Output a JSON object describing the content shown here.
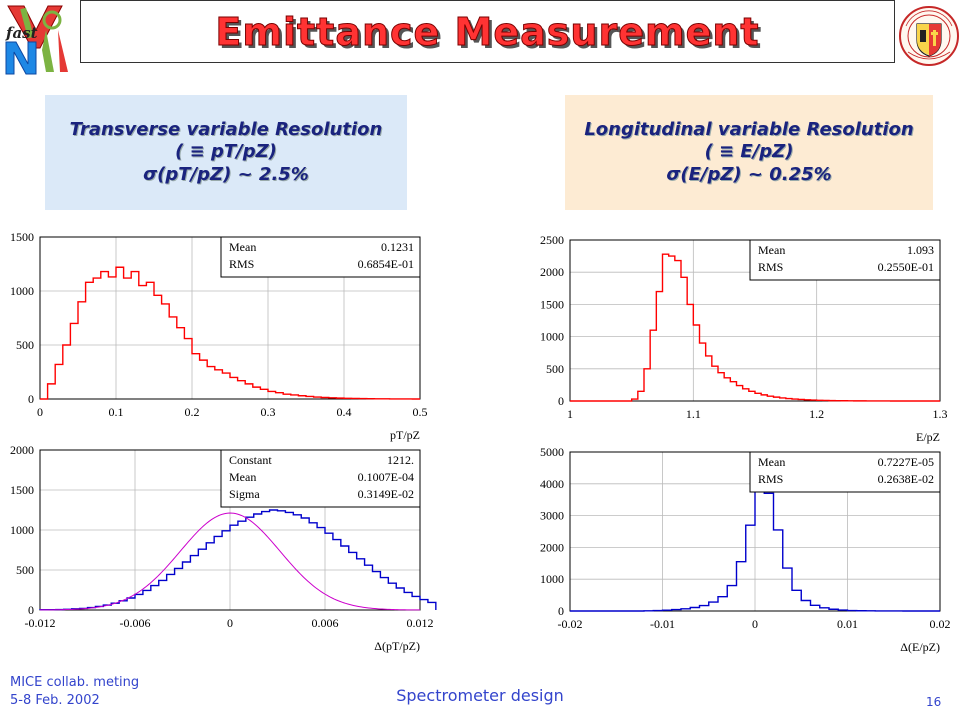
{
  "slide": {
    "title": "Emittance Measurement",
    "trans_box": {
      "heading": "Transverse variable Resolution",
      "line1": "( ≡ pT/pZ)",
      "line2": "σ(pT/pZ) ~ 2.5%"
    },
    "long_box": {
      "heading": "Longitudinal variable Resolution",
      "line1": "( ≡ E/pZ)",
      "line2": "σ(E/pZ) ~ 0.25%"
    },
    "footer": {
      "line1": "MICE collab. meting",
      "line2": "5-8 Feb. 2002",
      "center": "Spectrometer design",
      "page": "16"
    },
    "colors": {
      "title": "#ff3333",
      "box_text": "#1a237e",
      "footer": "#3344cc",
      "red_hist": "#ff0000",
      "blue_hist": "#0000cc",
      "fit": "#cc00cc"
    }
  },
  "chart_data": [
    {
      "type": "histogram",
      "xlabel": "pT/pZ",
      "xlim": [
        0,
        0.5
      ],
      "ylim": [
        0,
        1500
      ],
      "xticks": [
        "0",
        "0.1",
        "0.2",
        "0.3",
        "0.4",
        "0.5"
      ],
      "yticks": [
        "0",
        "500",
        "1000",
        "1500"
      ],
      "stats": [
        [
          "Mean",
          "0.1231"
        ],
        [
          "RMS",
          "0.6854E-01"
        ]
      ],
      "bin_low": 0,
      "bin_width": 0.01,
      "values": [
        0,
        140,
        320,
        500,
        700,
        900,
        1080,
        1120,
        1180,
        1130,
        1220,
        1120,
        1180,
        1050,
        1080,
        960,
        880,
        760,
        660,
        560,
        420,
        360,
        300,
        270,
        240,
        200,
        170,
        140,
        110,
        90,
        70,
        58,
        45,
        38,
        30,
        24,
        18,
        14,
        11,
        8,
        6,
        5,
        4,
        3,
        2,
        2,
        1,
        1,
        1,
        0
      ],
      "series": [
        {
          "name": "",
          "color": "#ff0000"
        }
      ]
    },
    {
      "type": "histogram",
      "xlabel": "E/pZ",
      "xlim": [
        1,
        1.3
      ],
      "ylim": [
        0,
        2500
      ],
      "xticks": [
        "1",
        "1.1",
        "1.2",
        "1.3"
      ],
      "yticks": [
        "0",
        "500",
        "1000",
        "1500",
        "2000",
        "2500"
      ],
      "stats": [
        [
          "Mean",
          "1.093"
        ],
        [
          "RMS",
          "0.2550E-01"
        ]
      ],
      "bin_low": 1,
      "bin_width": 0.005,
      "values": [
        0,
        0,
        0,
        0,
        0,
        0,
        0,
        0,
        0,
        0,
        30,
        150,
        500,
        1100,
        1700,
        2280,
        2250,
        2180,
        1920,
        1500,
        1180,
        900,
        700,
        540,
        440,
        360,
        300,
        240,
        190,
        150,
        120,
        95,
        75,
        60,
        48,
        38,
        30,
        24,
        18,
        14,
        10,
        8,
        6,
        5,
        4,
        3,
        2,
        2,
        1,
        1,
        1,
        1,
        0,
        0,
        0,
        0,
        0,
        0,
        0,
        0
      ],
      "series": [
        {
          "name": "",
          "color": "#ff0000"
        }
      ]
    },
    {
      "type": "histogram",
      "xlabel": "Δ(pT/pZ)",
      "xlim": [
        -0.012,
        0.012
      ],
      "ylim": [
        0,
        2000
      ],
      "xticks": [
        "-0.012",
        "-0.006",
        "0",
        "0.006",
        "0.012"
      ],
      "yticks": [
        "0",
        "500",
        "1000",
        "1500",
        "2000"
      ],
      "stats": [
        [
          "Constant",
          "1212."
        ],
        [
          "Mean",
          "0.1007E-04"
        ],
        [
          "Sigma",
          "0.3149E-02"
        ]
      ],
      "fit": {
        "type": "gaussian",
        "constant": 1212,
        "mean": 1.007e-05,
        "sigma": 0.003149
      },
      "bin_low": -0.012,
      "bin_width": 0.0005,
      "values": [
        3,
        4,
        6,
        9,
        14,
        20,
        30,
        45,
        62,
        85,
        115,
        150,
        195,
        245,
        305,
        370,
        445,
        520,
        600,
        680,
        760,
        840,
        920,
        990,
        1060,
        1110,
        1160,
        1200,
        1230,
        1250,
        1240,
        1220,
        1190,
        1150,
        1090,
        1030,
        960,
        880,
        800,
        720,
        640,
        560,
        480,
        405,
        335,
        275,
        220,
        170,
        130,
        95
      ],
      "series": [
        {
          "name": "",
          "color": "#0000cc"
        }
      ]
    },
    {
      "type": "histogram",
      "xlabel": "Δ(E/pZ)",
      "xlim": [
        -0.02,
        0.02
      ],
      "ylim": [
        0,
        5000
      ],
      "xticks": [
        "-0.02",
        "-0.01",
        "0",
        "0.01",
        "0.02"
      ],
      "yticks": [
        "0",
        "1000",
        "2000",
        "3000",
        "4000",
        "5000"
      ],
      "stats": [
        [
          "Mean",
          "0.7227E-05"
        ],
        [
          "RMS",
          "0.2638E-02"
        ]
      ],
      "bin_low": -0.02,
      "bin_width": 0.001,
      "values": [
        0,
        0,
        0,
        0,
        0,
        0,
        0,
        0,
        5,
        15,
        25,
        45,
        70,
        110,
        170,
        280,
        450,
        800,
        1550,
        2700,
        3780,
        3700,
        2550,
        1350,
        650,
        330,
        180,
        100,
        55,
        30,
        15,
        8,
        5,
        3,
        2,
        1,
        0,
        0,
        0,
        0
      ],
      "series": [
        {
          "name": "",
          "color": "#0000cc"
        }
      ]
    }
  ]
}
